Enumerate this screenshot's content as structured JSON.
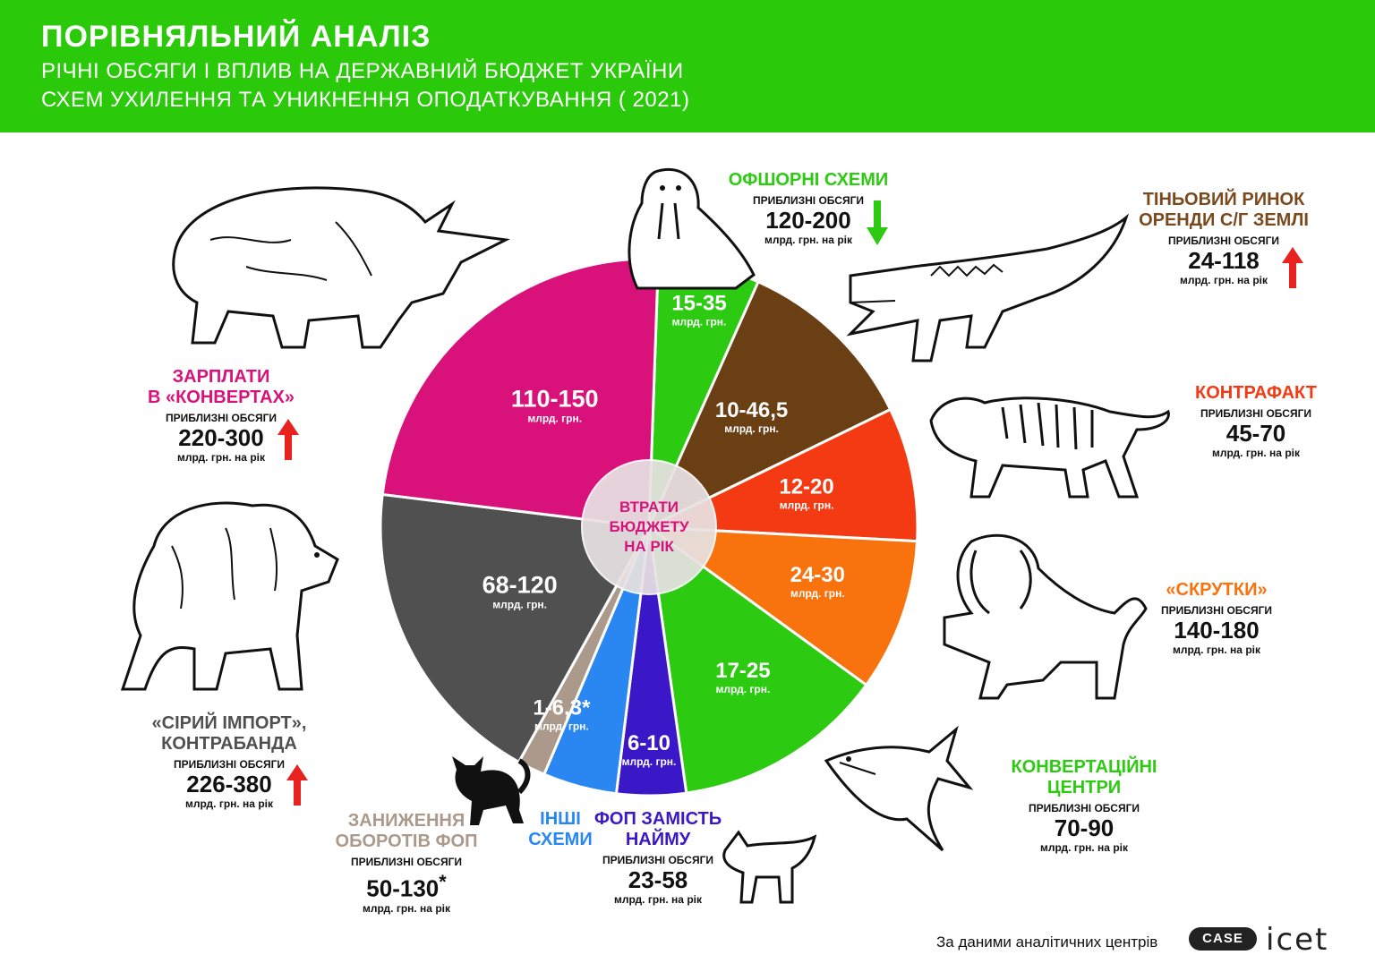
{
  "header": {
    "title": "ПОРІВНЯЛЬНИЙ АНАЛІЗ",
    "subtitle_line1": "РІЧНІ ОБСЯГИ І ВПЛИВ НА ДЕРЖАВНИЙ БЮДЖЕТ УКРАЇНИ",
    "subtitle_line2": "СХЕМ УХИЛЕННЯ ТА УНИКНЕННЯ ОПОДАТКУВАННЯ  ( 2021)"
  },
  "chart_data": {
    "type": "pie",
    "center_label_lines": [
      "ВТРАТИ",
      "БЮДЖЕТУ",
      "НА РІК"
    ],
    "slice_unit": "млрд. грн.",
    "slices": [
      {
        "label": "15-35",
        "value_low": 15,
        "value_high": 35,
        "color": "#2ccb12",
        "scheme": "ОФШОРНІ СХЕМИ"
      },
      {
        "label": "10-46,5",
        "value_low": 10,
        "value_high": 46.5,
        "color": "#6b3f14",
        "scheme": "ТІНЬОВИЙ РИНОК ОРЕНДИ С/Г ЗЕМЛІ"
      },
      {
        "label": "12-20",
        "value_low": 12,
        "value_high": 20,
        "color": "#f33a12",
        "scheme": "КОНТРАФАКТ"
      },
      {
        "label": "24-30",
        "value_low": 24,
        "value_high": 30,
        "color": "#f8720d",
        "scheme": "«СКРУТКИ»"
      },
      {
        "label": "17-25",
        "value_low": 17,
        "value_high": 25,
        "color": "#2ccb12",
        "scheme": "КОНВЕРТАЦІЙНІ ЦЕНТРИ"
      },
      {
        "label": "6-10",
        "value_low": 6,
        "value_high": 10,
        "color": "#3a18c8",
        "scheme": "ФОП ЗАМІСТЬ НАЙМУ"
      },
      {
        "label": "",
        "value_low": null,
        "value_high": null,
        "color": "#2a86f0",
        "scheme": "ІНШІ СХЕМИ"
      },
      {
        "label": "1-6,3",
        "value_low": 1,
        "value_high": 6.3,
        "asterisk": "*",
        "color": "#ab9a8b",
        "scheme": "ЗАНИЖЕННЯ ОБОРОТІВ ФОП"
      },
      {
        "label": "68-120",
        "value_low": 68,
        "value_high": 120,
        "color": "#505050",
        "scheme": "«СІРИЙ ІМПОРТ», КОНТРАБАНДА"
      },
      {
        "label": "110-150",
        "value_low": 110,
        "value_high": 150,
        "color": "#d9127b",
        "scheme": "ЗАРПЛАТИ В «КОНВЕРТАХ»"
      }
    ]
  },
  "schemes": {
    "offshore": {
      "name": "ОФШОРНІ СХЕМИ",
      "color": "#2ccb12",
      "volume_label": "ПРИБЛИЗНІ ОБСЯГИ",
      "volume": "120-200",
      "unit": "млрд. грн. на рік",
      "trend": "down",
      "trend_color": "#2ccb12"
    },
    "land": {
      "name_line1": "ТІНЬОВИЙ РИНОК",
      "name_line2": "ОРЕНДИ С/Г ЗЕМЛІ",
      "color": "#7a4a1e",
      "volume_label": "ПРИБЛИЗНІ ОБСЯГИ",
      "volume": "24-118",
      "unit": "млрд. грн. на рік",
      "trend": "up",
      "trend_color": "#e8221f"
    },
    "counterfeit": {
      "name": "КОНТРАФАКТ",
      "color": "#f33a12",
      "volume_label": "ПРИБЛИЗНІ ОБСЯГИ",
      "volume": "45-70",
      "unit": "млрд. грн. на рік"
    },
    "twists": {
      "name": "«СКРУТКИ»",
      "color": "#f8720d",
      "volume_label": "ПРИБЛИЗНІ ОБСЯГИ",
      "volume": "140-180",
      "unit": "млрд. грн. на рік"
    },
    "conversion": {
      "name_line1": "КОНВЕРТАЦІЙНІ",
      "name_line2": "ЦЕНТРИ",
      "color": "#2ccb12",
      "volume_label": "ПРИБЛИЗНІ ОБСЯГИ",
      "volume": "70-90",
      "unit": "млрд. грн. на рік"
    },
    "fop_hiring": {
      "name_line1": "ФОП ЗАМІСТЬ",
      "name_line2": "НАЙМУ",
      "color": "#3a18c8",
      "volume_label": "ПРИБЛИЗНІ ОБСЯГИ",
      "volume": "23-58",
      "unit": "млрд. грн. на рік"
    },
    "other": {
      "name_line1": "ІНШІ",
      "name_line2": "СХЕМИ",
      "color": "#2a86f0"
    },
    "fop_turnover": {
      "name_line1": "ЗАНИЖЕННЯ",
      "name_line2": "ОБОРОТІВ ФОП",
      "color": "#ab9a8b",
      "volume_label": "ПРИБЛИЗНІ ОБСЯГИ",
      "volume": "50-130",
      "asterisk": "*",
      "unit": "млрд. грн. на рік"
    },
    "gray_import": {
      "name_line1": "«СІРИЙ ІМПОРТ»,",
      "name_line2": "КОНТРАБАНДА",
      "color": "#505050",
      "volume_label": "ПРИБЛИЗНІ ОБСЯГИ",
      "volume": "226-380",
      "unit": "млрд. грн. на рік",
      "trend": "up",
      "trend_color": "#e8221f"
    },
    "salaries": {
      "name_line1": "ЗАРПЛАТИ",
      "name_line2": "В «КОНВЕРТАХ»",
      "color": "#d9127b",
      "volume_label": "ПРИБЛИЗНІ ОБСЯГИ",
      "volume": "220-300",
      "unit": "млрд. грн. на рік",
      "trend": "up",
      "trend_color": "#e8221f"
    }
  },
  "footer": {
    "source_text": "За даними аналітичних центрів",
    "logo1": "CASE",
    "logo2": "icet"
  },
  "animals": [
    "rhino",
    "walrus",
    "crocodile",
    "tiger",
    "lion",
    "shark",
    "wolf",
    "cat",
    "bear"
  ]
}
